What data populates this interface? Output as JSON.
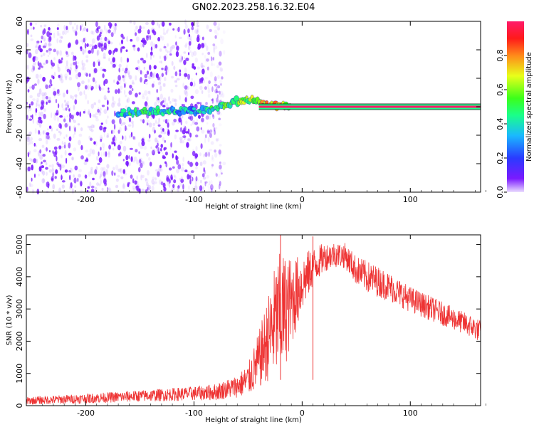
{
  "title": "GN02.2023.258.16.32.E04",
  "colors": {
    "snr_line": "#ee3333",
    "axis": "#000000",
    "spectrum_low": "#7a1aff",
    "spectrum_mid": "#1ab8ff",
    "spectrum_high": "#ff2a2a"
  },
  "chart_data": [
    {
      "type": "heatmap",
      "title": "",
      "xlabel": "Height of straight line (km)",
      "ylabel": "Frequency (Hz)",
      "xlim": [
        -255,
        165
      ],
      "ylim": [
        -60,
        60
      ],
      "xticks": [
        -200,
        -100,
        0,
        100
      ],
      "yticks": [
        -60,
        -40,
        -20,
        0,
        20,
        40,
        60
      ],
      "colorbar": {
        "label": "Normalized spectral amplitude",
        "range": [
          0,
          1
        ],
        "ticks": [
          0.0,
          0.2,
          0.4,
          0.6,
          0.8
        ],
        "colormap": "rainbow (violet-blue-cyan-green-yellow-red-magenta)"
      },
      "features": {
        "noise_region_x": [
          -255,
          -72
        ],
        "ridge_points": [
          {
            "x": -170,
            "y": -5,
            "amp": 0.35
          },
          {
            "x": -148,
            "y": -3,
            "amp": 0.45
          },
          {
            "x": -100,
            "y": -3,
            "amp": 0.3
          },
          {
            "x": -85,
            "y": -2,
            "amp": 0.45
          },
          {
            "x": -70,
            "y": 2,
            "amp": 0.5
          },
          {
            "x": -55,
            "y": 5,
            "amp": 0.55
          },
          {
            "x": -45,
            "y": 5,
            "amp": 0.6
          },
          {
            "x": -35,
            "y": 2,
            "amp": 0.7
          },
          {
            "x": -20,
            "y": 0,
            "amp": 0.8
          },
          {
            "x": -10,
            "y": 0,
            "amp": 0.5
          }
        ],
        "carrier_line": {
          "x_start": -40,
          "x_end": 165,
          "y": 0,
          "amp": 1.0
        }
      }
    },
    {
      "type": "line",
      "title": "",
      "xlabel": "Height of straight line (km)",
      "ylabel": "SNR (10 * v/v)",
      "xlim": [
        -255,
        165
      ],
      "ylim": [
        0,
        5300
      ],
      "xticks": [
        -200,
        -100,
        0,
        100
      ],
      "yticks": [
        0,
        1000,
        2000,
        3000,
        4000,
        5000
      ],
      "series": [
        {
          "x": [
            -255,
            -200,
            -150,
            -100,
            -80,
            -60,
            -50,
            -40,
            -30,
            -25,
            -20,
            -10,
            0,
            10,
            20,
            30,
            40,
            50,
            60,
            80,
            100,
            120,
            140,
            160,
            165
          ],
          "mean": [
            150,
            220,
            300,
            380,
            420,
            600,
            800,
            1400,
            2200,
            2600,
            2800,
            3200,
            3800,
            4300,
            4600,
            4700,
            4650,
            4200,
            4000,
            3700,
            3300,
            3000,
            2700,
            2400,
            2300
          ],
          "spread": [
            120,
            150,
            180,
            220,
            260,
            350,
            500,
            900,
            1400,
            1800,
            2000,
            1400,
            900,
            600,
            450,
            400,
            400,
            450,
            500,
            450,
            400,
            380,
            350,
            350,
            350
          ]
        }
      ],
      "peaks": [
        {
          "x": -20,
          "y": 5300
        },
        {
          "x": 10,
          "y": 5250
        }
      ]
    }
  ]
}
